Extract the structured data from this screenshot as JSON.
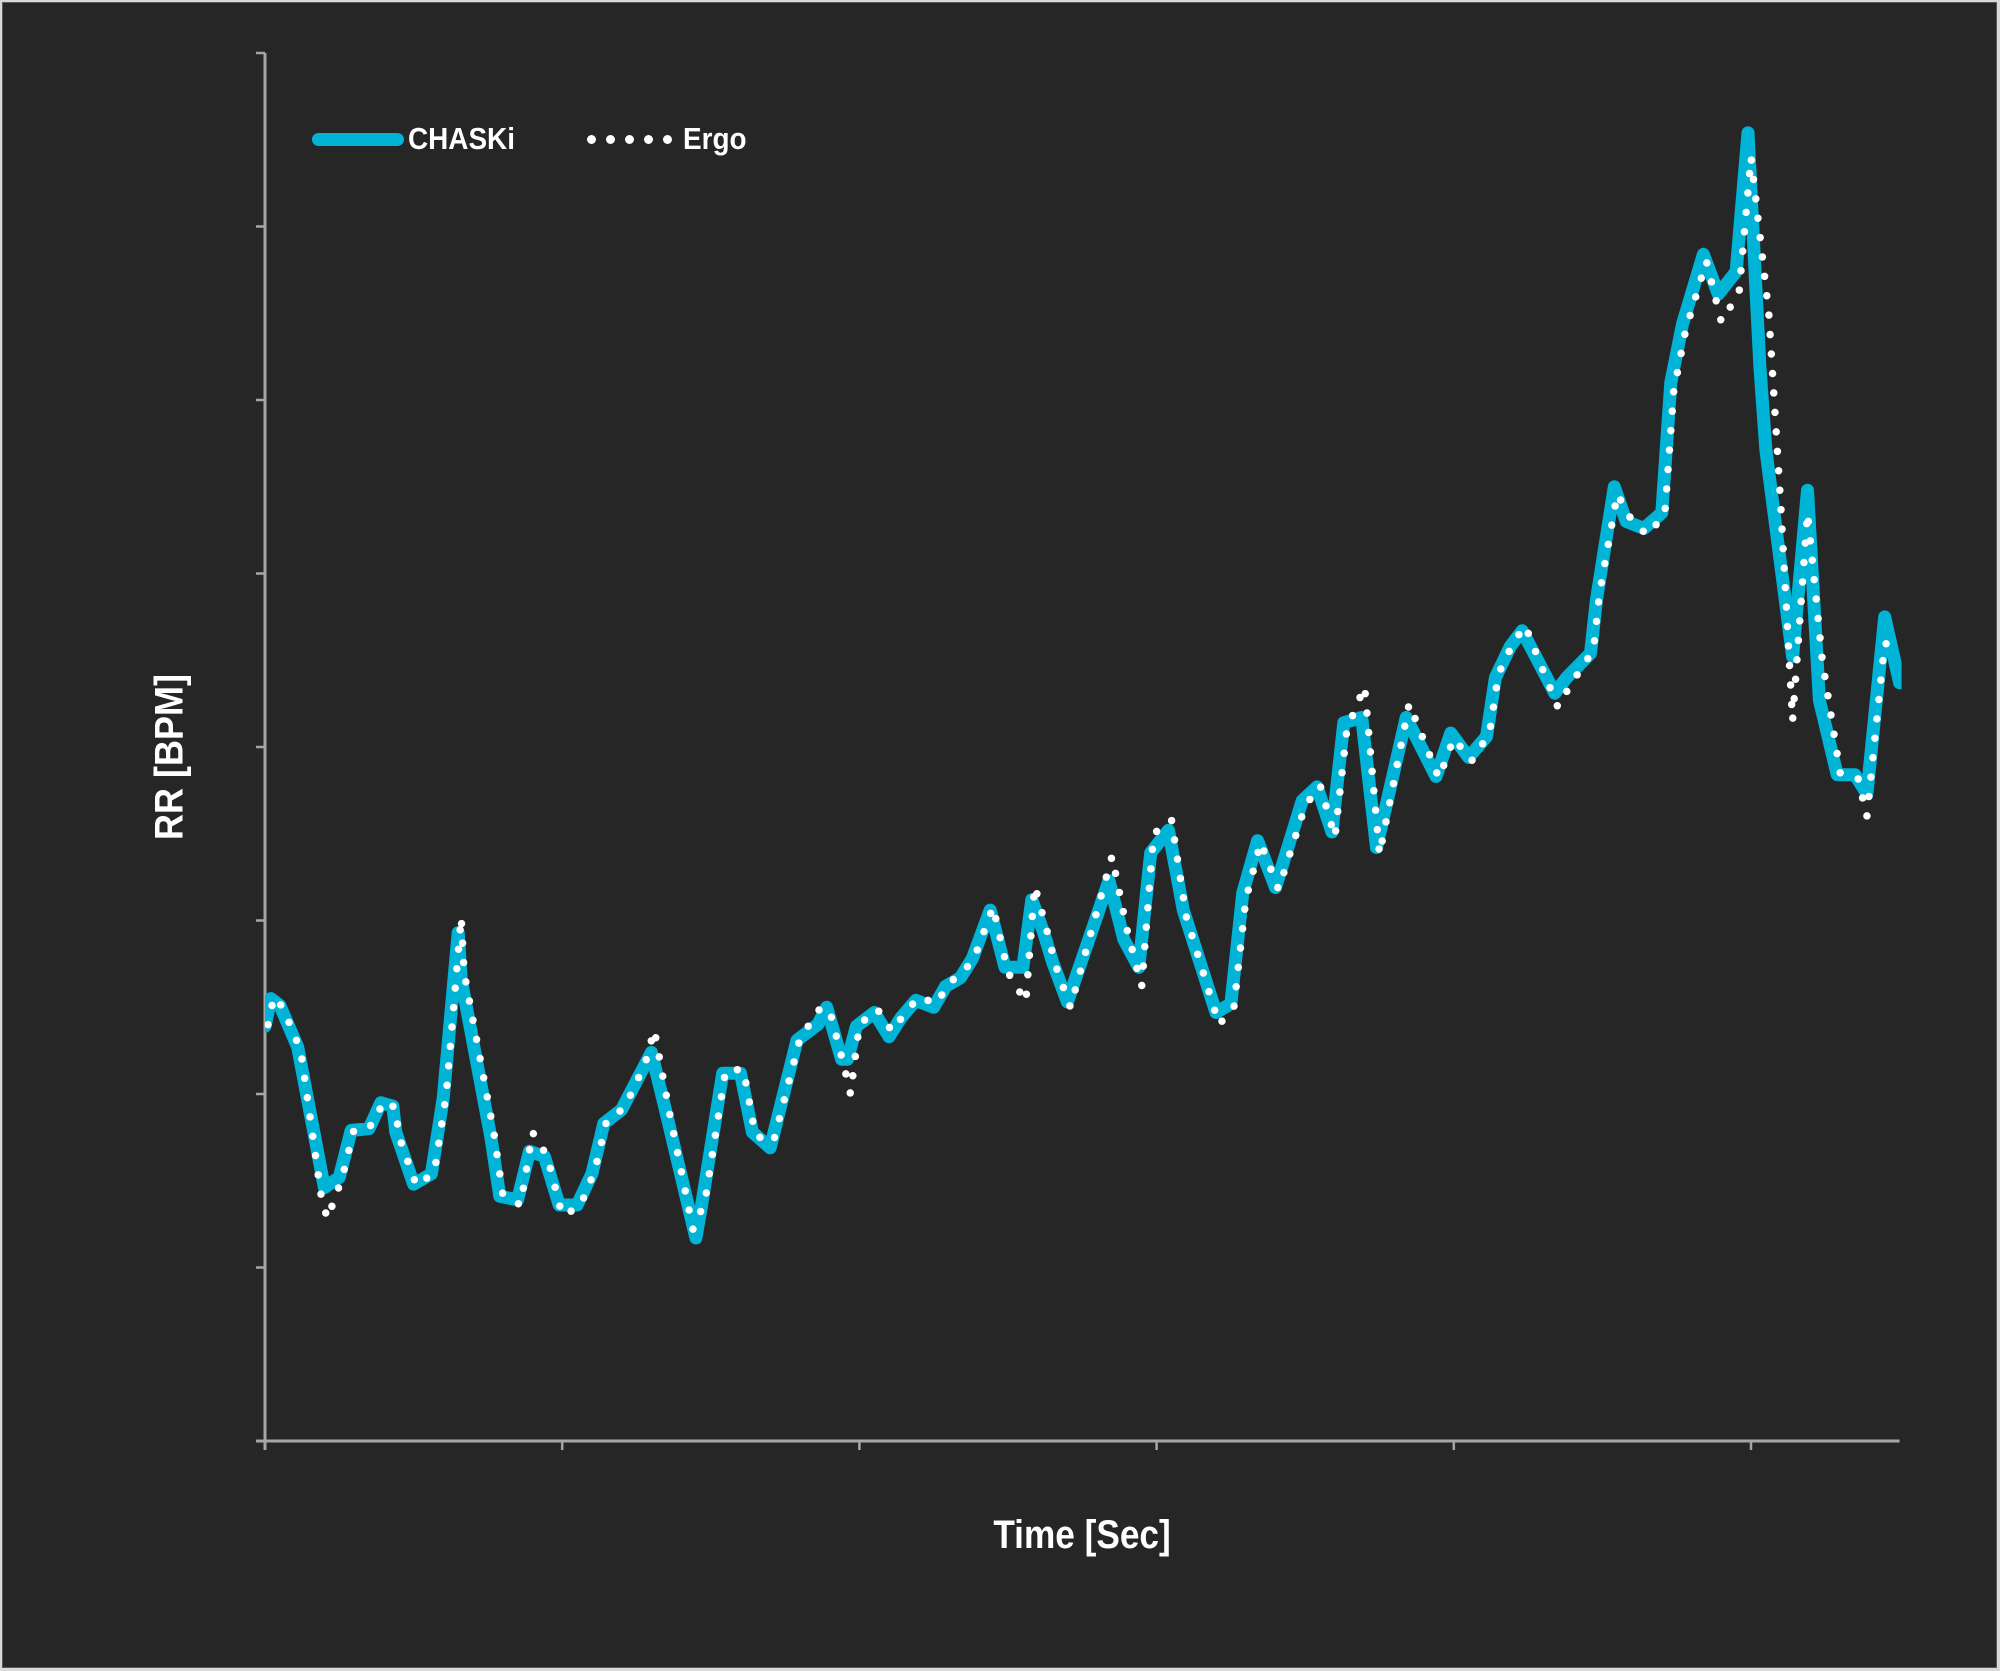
{
  "chart_data": {
    "type": "line",
    "title": "",
    "xlabel": "Time [Sec]",
    "ylabel": "RR [BPM]",
    "x_tick_labels": [],
    "y_tick_labels": [],
    "units_note": "axes have tick marks but no numeric labels; values are in tick-interval units (x: 0-5.5, one unit per x-tick; y: 0-8, one unit per y-tick)",
    "xlim": [
      0,
      5.5
    ],
    "ylim": [
      0,
      8
    ],
    "x_ticks": [
      0,
      1,
      2,
      3,
      4,
      5
    ],
    "y_ticks": [
      0,
      1,
      2,
      3,
      4,
      5,
      6,
      7,
      8
    ],
    "grid": false,
    "legend_position": "top-left",
    "series": [
      {
        "name": "CHASKi",
        "style": "solid",
        "color": "#00b4d8",
        "x": [
          0.0,
          0.02,
          0.05,
          0.11,
          0.2,
          0.25,
          0.29,
          0.35,
          0.39,
          0.43,
          0.44,
          0.5,
          0.56,
          0.6,
          0.65,
          0.66,
          0.76,
          0.79,
          0.85,
          0.89,
          0.94,
          0.99,
          1.05,
          1.1,
          1.14,
          1.2,
          1.27,
          1.3,
          1.35,
          1.45,
          1.47,
          1.54,
          1.6,
          1.64,
          1.7,
          1.79,
          1.86,
          1.89,
          1.94,
          1.96,
          1.99,
          2.05,
          2.1,
          2.14,
          2.19,
          2.25,
          2.29,
          2.34,
          2.38,
          2.44,
          2.49,
          2.55,
          2.58,
          2.62,
          2.65,
          2.7,
          2.84,
          2.89,
          2.94,
          2.98,
          3.04,
          3.09,
          3.2,
          3.25,
          3.29,
          3.34,
          3.4,
          3.49,
          3.54,
          3.59,
          3.63,
          3.69,
          3.74,
          3.84,
          3.94,
          3.99,
          4.05,
          4.11,
          4.14,
          4.19,
          4.23,
          4.34,
          4.38,
          4.46,
          4.48,
          4.54,
          4.58,
          4.64,
          4.7,
          4.73,
          4.77,
          4.84,
          4.89,
          4.95,
          4.99,
          5.03,
          5.05,
          5.14,
          5.19,
          5.23,
          5.29,
          5.35,
          5.39,
          5.45,
          5.5
        ],
        "y": [
          2.39,
          2.55,
          2.51,
          2.27,
          1.46,
          1.52,
          1.79,
          1.8,
          1.95,
          1.93,
          1.78,
          1.48,
          1.54,
          1.98,
          2.93,
          2.66,
          1.75,
          1.41,
          1.39,
          1.67,
          1.64,
          1.36,
          1.36,
          1.54,
          1.83,
          1.91,
          2.14,
          2.24,
          1.89,
          1.17,
          1.37,
          2.12,
          2.12,
          1.78,
          1.69,
          2.31,
          2.4,
          2.5,
          2.2,
          2.2,
          2.39,
          2.47,
          2.33,
          2.44,
          2.54,
          2.5,
          2.62,
          2.67,
          2.78,
          3.06,
          2.73,
          2.73,
          3.12,
          2.93,
          2.76,
          2.53,
          3.23,
          2.89,
          2.73,
          3.39,
          3.52,
          3.06,
          2.47,
          2.52,
          3.16,
          3.46,
          3.19,
          3.69,
          3.77,
          3.51,
          4.14,
          4.17,
          3.42,
          4.17,
          3.83,
          4.08,
          3.94,
          4.06,
          4.4,
          4.58,
          4.67,
          4.31,
          4.4,
          4.54,
          4.85,
          5.5,
          5.3,
          5.26,
          5.35,
          6.1,
          6.44,
          6.84,
          6.61,
          6.74,
          7.54,
          6.19,
          5.71,
          4.52,
          5.48,
          4.27,
          3.84,
          3.84,
          3.73,
          4.75,
          4.37
        ]
      },
      {
        "name": "Ergo",
        "style": "dotted",
        "color": "#ffffff",
        "x": [
          0.01,
          0.03,
          0.06,
          0.12,
          0.19,
          0.21,
          0.26,
          0.3,
          0.36,
          0.4,
          0.44,
          0.45,
          0.51,
          0.57,
          0.61,
          0.66,
          0.67,
          0.77,
          0.8,
          0.86,
          0.9,
          0.95,
          1.0,
          1.06,
          1.11,
          1.15,
          1.21,
          1.28,
          1.31,
          1.36,
          1.44,
          1.48,
          1.55,
          1.61,
          1.65,
          1.71,
          1.8,
          1.87,
          1.9,
          1.95,
          1.97,
          2.0,
          2.06,
          2.11,
          2.15,
          2.2,
          2.26,
          2.3,
          2.35,
          2.39,
          2.45,
          2.5,
          2.56,
          2.59,
          2.63,
          2.66,
          2.71,
          2.85,
          2.9,
          2.95,
          2.99,
          3.05,
          3.1,
          3.21,
          3.26,
          3.3,
          3.35,
          3.41,
          3.5,
          3.55,
          3.6,
          3.64,
          3.7,
          3.75,
          3.85,
          3.95,
          4.0,
          4.06,
          4.12,
          4.15,
          4.2,
          4.24,
          4.35,
          4.39,
          4.47,
          4.49,
          4.55,
          4.59,
          4.65,
          4.71,
          4.74,
          4.78,
          4.85,
          4.9,
          4.96,
          5.0,
          5.06,
          5.1,
          5.14,
          5.19,
          5.24,
          5.3,
          5.36,
          5.39,
          5.45,
          5.5
        ],
        "y": [
          2.4,
          2.56,
          2.5,
          2.25,
          1.4,
          1.28,
          1.52,
          1.8,
          1.82,
          1.96,
          1.92,
          1.76,
          1.47,
          1.55,
          2.0,
          3.02,
          2.7,
          1.78,
          1.42,
          1.36,
          1.78,
          1.64,
          1.3,
          1.35,
          1.56,
          1.85,
          1.92,
          2.18,
          2.37,
          1.9,
          1.22,
          1.38,
          2.14,
          2.14,
          1.76,
          1.72,
          2.32,
          2.5,
          2.48,
          2.15,
          2.0,
          2.4,
          2.49,
          2.36,
          2.46,
          2.56,
          2.52,
          2.64,
          2.7,
          2.8,
          3.08,
          2.7,
          2.53,
          3.2,
          2.95,
          2.74,
          2.5,
          3.37,
          2.95,
          2.62,
          3.5,
          3.58,
          3.02,
          2.4,
          2.5,
          3.12,
          3.45,
          3.18,
          3.66,
          3.78,
          3.48,
          4.1,
          4.35,
          3.38,
          4.25,
          3.82,
          4.05,
          3.92,
          4.08,
          4.42,
          4.6,
          4.7,
          4.23,
          4.35,
          4.56,
          4.88,
          5.46,
          5.33,
          5.22,
          5.34,
          6.05,
          6.4,
          6.8,
          6.45,
          6.62,
          7.4,
          6.5,
          5.4,
          4.15,
          5.35,
          4.5,
          3.85,
          3.82,
          3.6,
          4.6,
          4.55
        ]
      }
    ]
  },
  "legend": {
    "items": [
      {
        "label": "CHASKi",
        "style": "solid",
        "color": "#00b4d8"
      },
      {
        "label": "Ergo",
        "style": "dotted",
        "color": "#ffffff"
      }
    ]
  },
  "axes": {
    "x_title": "Time [Sec]",
    "y_title": "RR [BPM]",
    "axis_color": "#a6a6a6"
  },
  "colors": {
    "background": "#262626",
    "chaski": "#00b4d8",
    "ergo": "#ffffff"
  }
}
